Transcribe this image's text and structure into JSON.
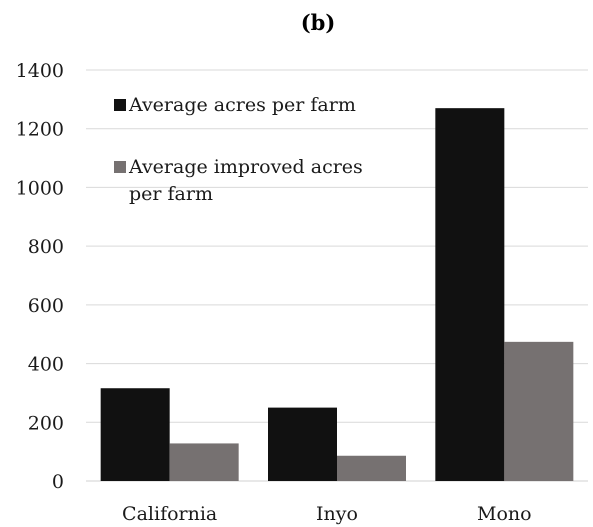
{
  "chart_data": {
    "type": "bar",
    "title": "(b)",
    "categories": [
      "California",
      "Inyo",
      "Mono"
    ],
    "series": [
      {
        "name": "Average acres per farm",
        "values": [
          316,
          250,
          1270
        ],
        "color": "#111111"
      },
      {
        "name": "Average improved acres per farm",
        "values": [
          128,
          86,
          474
        ],
        "color": "#767171"
      }
    ],
    "y_ticks": [
      0,
      200,
      400,
      600,
      800,
      1000,
      1200,
      1400
    ],
    "ylim": [
      0,
      1400
    ],
    "grid": true,
    "legend_position": "top-left",
    "xlabel": "",
    "ylabel": ""
  }
}
